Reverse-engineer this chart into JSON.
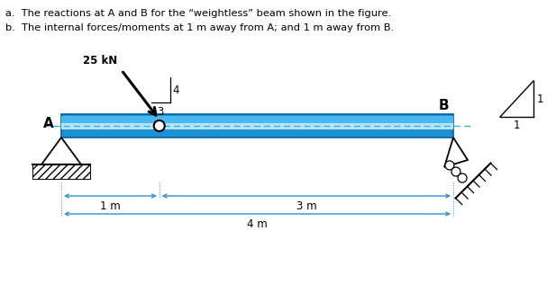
{
  "title_a": "a.  The reactions at A and B for the “weightless” beam shown in the figure.",
  "title_b": "b.  The internal forces/moments at 1 m away from A; and 1 m away from B.",
  "beam_color": "#1e90d4",
  "beam_top_color": "#4ab8f0",
  "beam_mid_color": "#b8e4f8",
  "dash_color": "#40b0e0",
  "load_label": "25 kN",
  "dim_1m_label": "1 m",
  "dim_3m_label": "3 m",
  "dim_4m_label": "4 m",
  "angle_label_3": "3",
  "angle_label_4": "4",
  "angle_label_1a": "1",
  "angle_label_1b": "1",
  "label_A": "A",
  "label_B": "B",
  "bg_color": "#ffffff",
  "text_color": "#000000",
  "blue_dim_color": "#3090d0"
}
